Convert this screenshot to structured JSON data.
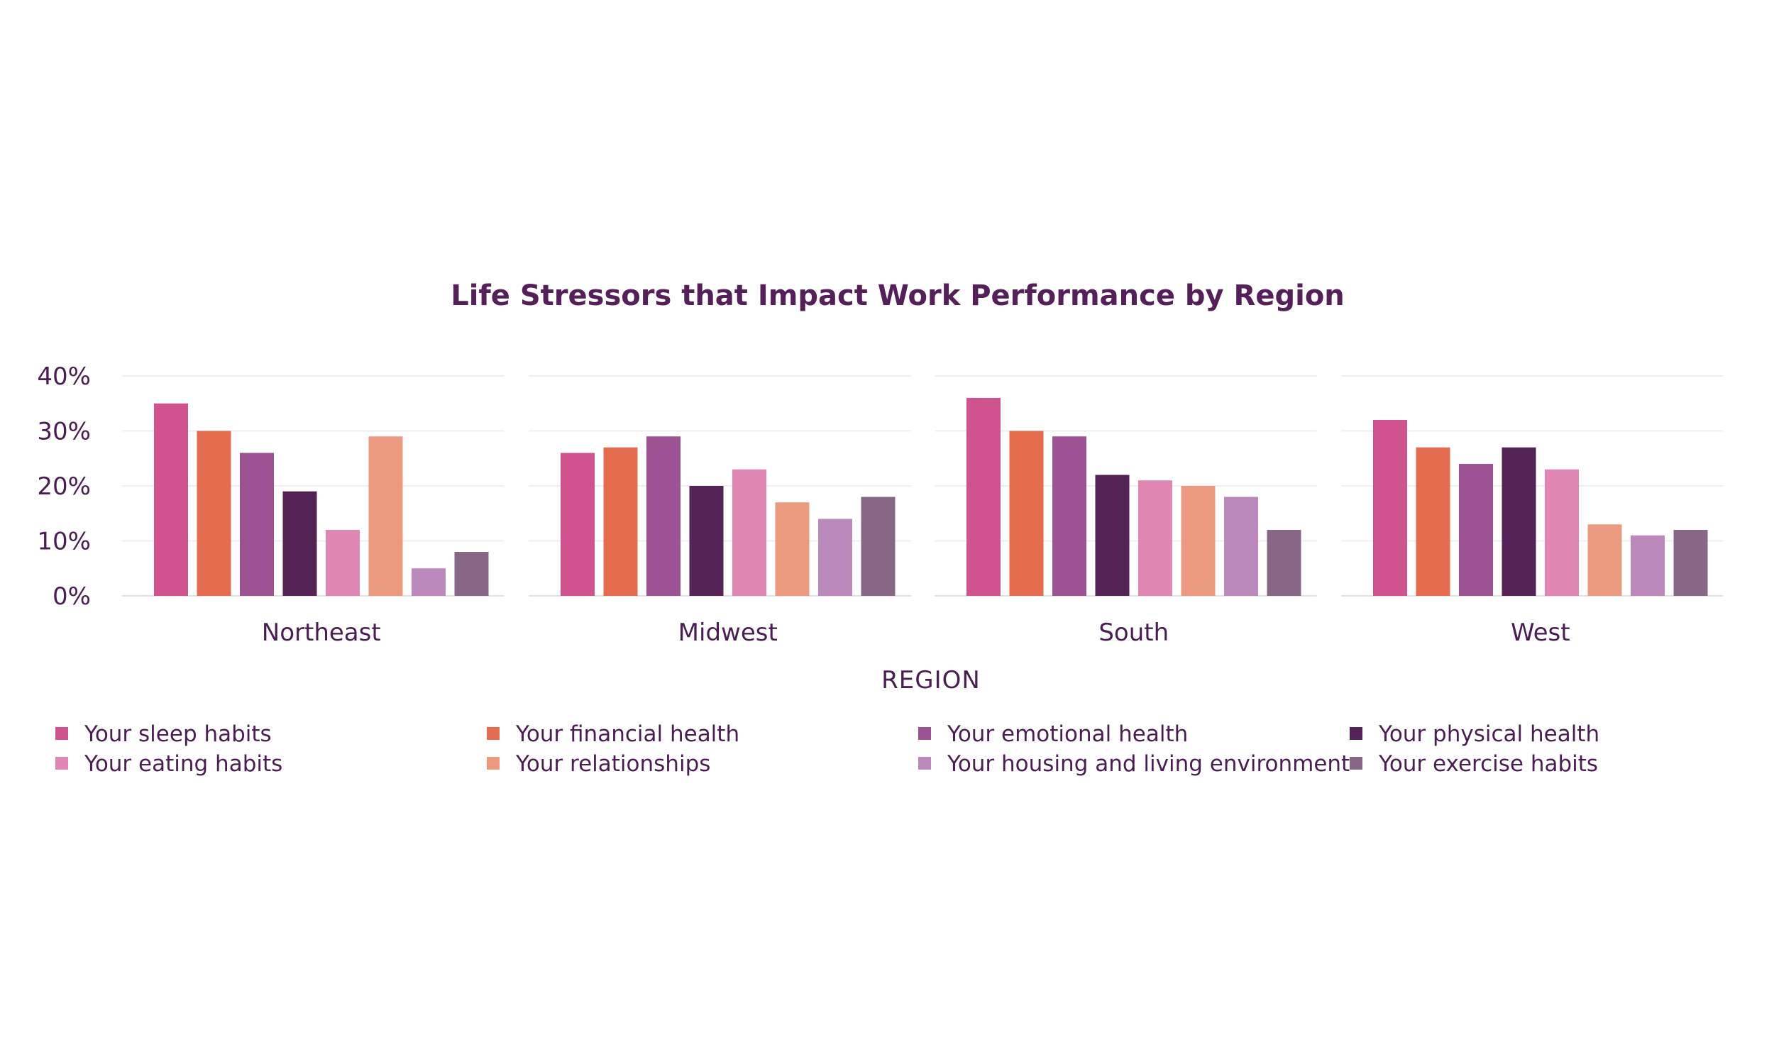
{
  "chart_data": {
    "type": "bar",
    "title": "Life Stressors that Impact Work Performance by Region",
    "xlabel": "REGION",
    "ylabel": "",
    "ylim": [
      0,
      40
    ],
    "yticks": [
      "0%",
      "10%",
      "20%",
      "30%",
      "40%"
    ],
    "ytick_values": [
      0,
      10,
      20,
      30,
      40
    ],
    "grid": true,
    "legend_position": "bottom",
    "categories": [
      "Northeast",
      "Midwest",
      "South",
      "West"
    ],
    "series": [
      {
        "name": "Your sleep habits",
        "color": "#d05390",
        "values": [
          35,
          26,
          36,
          32
        ]
      },
      {
        "name": "Your financial health",
        "color": "#e46b4e",
        "values": [
          30,
          27,
          30,
          27
        ]
      },
      {
        "name": "Your emotional health",
        "color": "#9c5293",
        "values": [
          26,
          29,
          29,
          24
        ]
      },
      {
        "name": "Your physical health",
        "color": "#542355",
        "values": [
          19,
          20,
          22,
          27
        ]
      },
      {
        "name": "Your eating habits",
        "color": "#df86b3",
        "values": [
          12,
          23,
          21,
          23
        ]
      },
      {
        "name": "Your relationships",
        "color": "#ec9a7f",
        "values": [
          29,
          17,
          20,
          13
        ]
      },
      {
        "name": "Your housing and living environment",
        "color": "#bb89bb",
        "values": [
          5,
          14,
          18,
          11
        ]
      },
      {
        "name": "Your exercise habits",
        "color": "#886685",
        "values": [
          8,
          18,
          12,
          12
        ]
      }
    ]
  }
}
